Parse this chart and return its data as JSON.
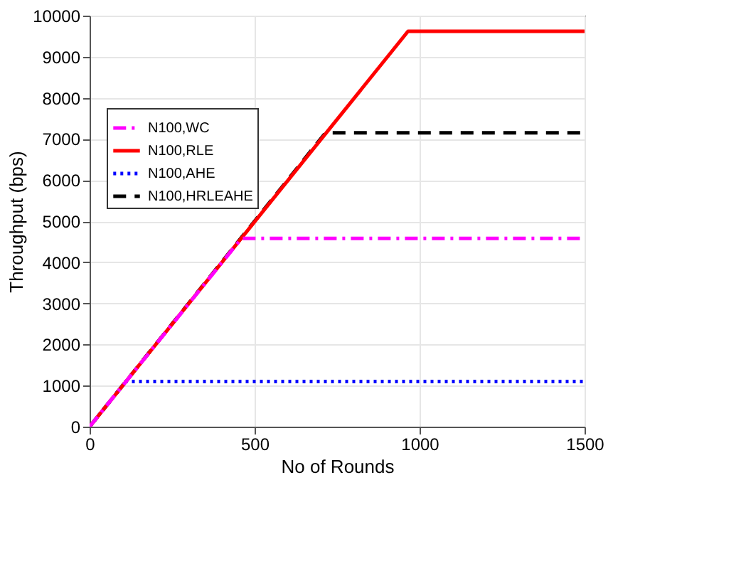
{
  "chart_data": {
    "type": "line",
    "xlabel": "No of Rounds",
    "ylabel": "Throughput (bps)",
    "xlim": [
      0,
      1500
    ],
    "xticks": [
      0,
      500,
      1000,
      1500
    ],
    "ylim": [
      0,
      10000
    ],
    "yticks": [
      0,
      1000,
      2000,
      3000,
      4000,
      5000,
      6000,
      7000,
      8000,
      9000,
      10000
    ],
    "grid": true,
    "legend": "top left",
    "marker": "none",
    "series": [
      {
        "name": "N100,WC",
        "color": "#ff00ff",
        "line_style": "dashdot",
        "x": [
          0,
          460,
          1500
        ],
        "values": [
          0,
          4580,
          4580
        ]
      },
      {
        "name": "N100,RLE",
        "color": "#ff0000",
        "line_style": "solid",
        "x": [
          0,
          965,
          1500
        ],
        "values": [
          0,
          9620,
          9620
        ]
      },
      {
        "name": "N100,AHE",
        "color": "#0000ff",
        "line_style": "dotted",
        "x": [
          0,
          110,
          1500
        ],
        "values": [
          0,
          1100,
          1100
        ]
      },
      {
        "name": "N100,HRLEAHE",
        "color": "#000000",
        "line_style": "dashed",
        "x": [
          0,
          715,
          1500
        ],
        "values": [
          0,
          7150,
          7150
        ]
      }
    ]
  }
}
